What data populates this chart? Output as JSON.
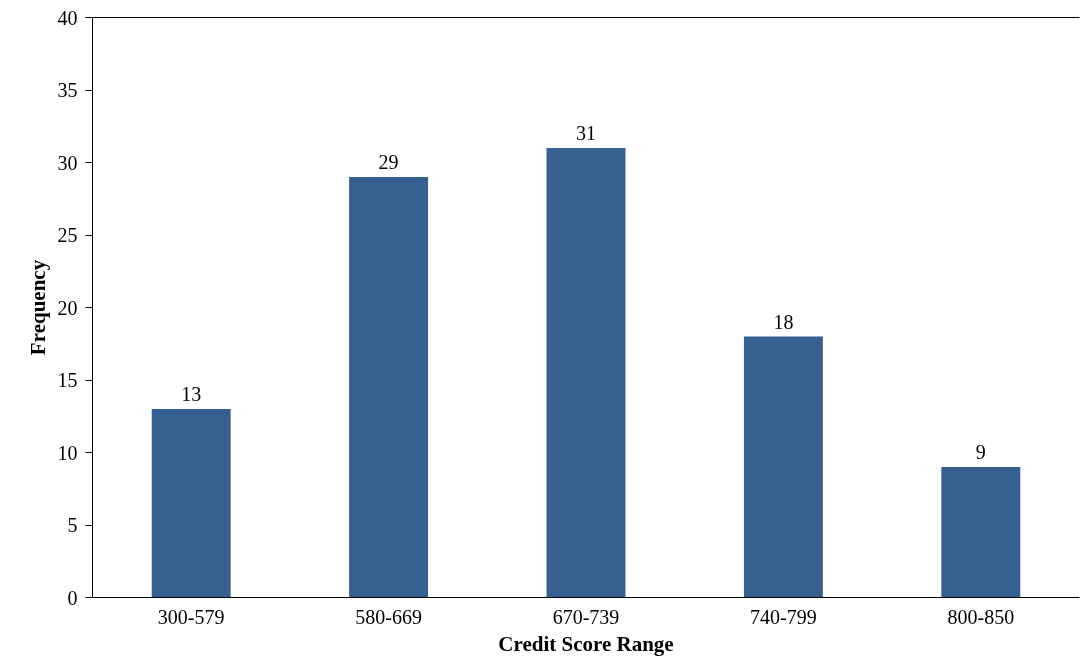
{
  "chart_data": {
    "type": "bar",
    "xlabel": "Credit Score Range",
    "ylabel": "Frequency",
    "categories": [
      "300-579",
      "580-669",
      "670-739",
      "740-799",
      "800-850"
    ],
    "values": [
      13,
      29,
      31,
      18,
      9
    ],
    "color": "#36608f",
    "ylim": [
      0,
      40
    ],
    "yticks": [
      0,
      5,
      10,
      15,
      20,
      25,
      30,
      35,
      40
    ],
    "data_labels": true,
    "grid": false
  }
}
